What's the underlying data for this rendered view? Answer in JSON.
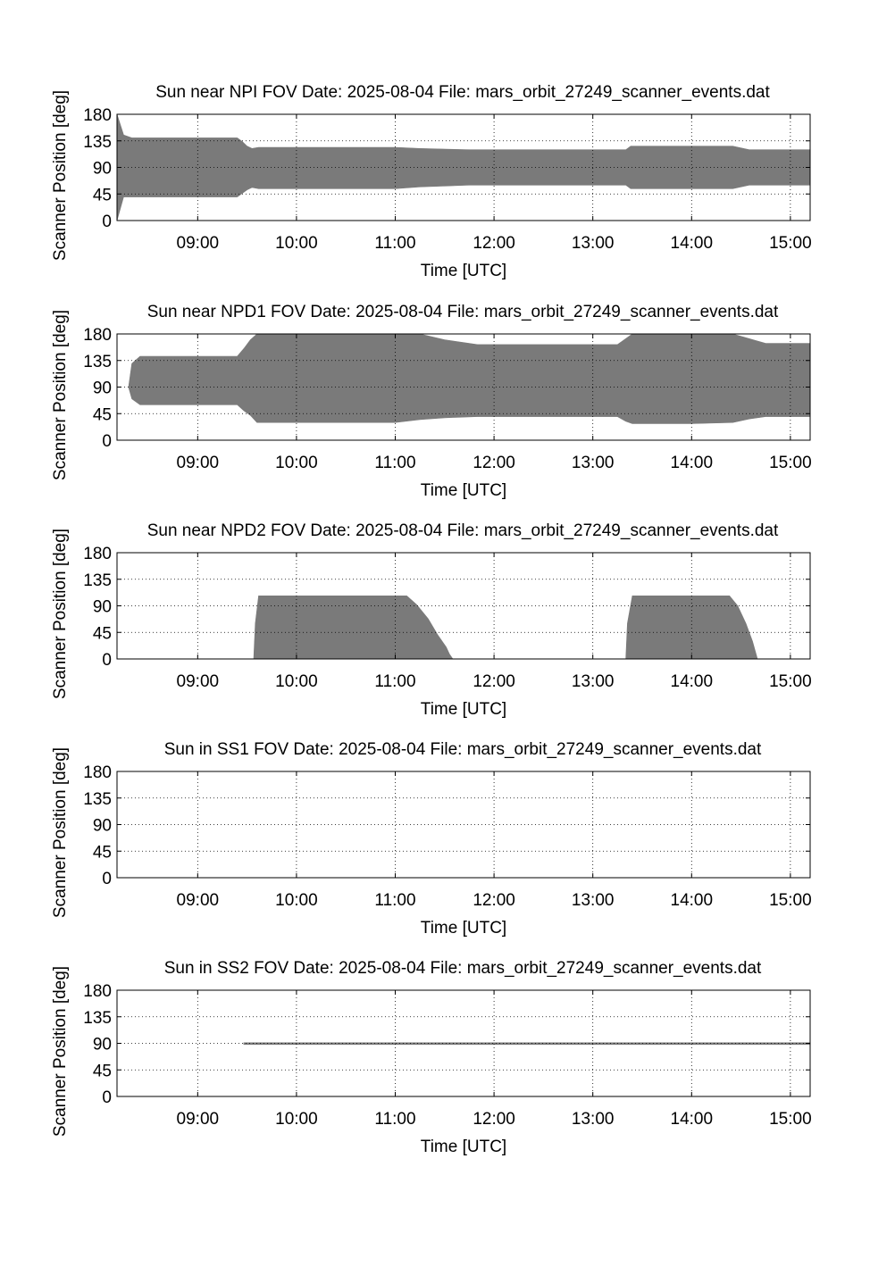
{
  "chart_data": [
    {
      "type": "area",
      "title": "Sun near NPI FOV   Date: 2025-08-04   File: mars_orbit_27249_scanner_events.dat",
      "xlabel": "Time [UTC]",
      "ylabel": "Scanner Position [deg]",
      "x_ticks": [
        "09:00",
        "10:00",
        "11:00",
        "12:00",
        "13:00",
        "14:00",
        "15:00"
      ],
      "y_ticks": [
        "0",
        "45",
        "90",
        "135",
        "180"
      ],
      "xlim": [
        "08:11",
        "15:12"
      ],
      "ylim": [
        0,
        180
      ],
      "grid": true,
      "fill_color": "#7a7a7a",
      "series": [
        {
          "x": [
            "08:11",
            "08:15",
            "08:20",
            "09:00",
            "09:24",
            "09:27",
            "09:30",
            "09:33",
            "09:37",
            "10:00",
            "11:00",
            "11:15",
            "11:45",
            "12:00",
            "13:00",
            "13:20",
            "13:23",
            "14:00",
            "14:25",
            "14:35",
            "15:12"
          ],
          "lower": [
            0,
            40,
            40,
            40,
            40,
            46,
            52,
            56,
            54,
            54,
            54,
            57,
            60,
            60,
            60,
            60,
            54,
            54,
            54,
            60,
            60
          ],
          "upper": [
            180,
            145,
            140,
            140,
            140,
            134,
            126,
            122,
            124,
            124,
            124,
            122,
            120,
            120,
            120,
            120,
            126,
            126,
            126,
            120,
            120
          ]
        }
      ]
    },
    {
      "type": "area",
      "title": "Sun near NPD1 FOV   Date: 2025-08-04   File: mars_orbit_27249_scanner_events.dat",
      "xlabel": "Time [UTC]",
      "ylabel": "Scanner Position [deg]",
      "x_ticks": [
        "09:00",
        "10:00",
        "11:00",
        "12:00",
        "13:00",
        "14:00",
        "15:00"
      ],
      "y_ticks": [
        "0",
        "45",
        "90",
        "135",
        "180"
      ],
      "xlim": [
        "08:11",
        "15:12"
      ],
      "ylim": [
        0,
        180
      ],
      "grid": true,
      "fill_color": "#7a7a7a",
      "series": [
        {
          "x": [
            "08:18",
            "08:20",
            "08:25",
            "09:00",
            "09:24",
            "09:28",
            "09:32",
            "09:36",
            "10:00",
            "11:00",
            "11:15",
            "11:30",
            "11:50",
            "12:00",
            "13:00",
            "13:15",
            "13:20",
            "13:24",
            "14:00",
            "14:25",
            "14:35",
            "14:45",
            "15:12"
          ],
          "lower": [
            90,
            70,
            60,
            60,
            60,
            50,
            42,
            30,
            30,
            30,
            35,
            38,
            40,
            40,
            40,
            40,
            32,
            28,
            28,
            30,
            36,
            40,
            40
          ],
          "upper": [
            90,
            130,
            142,
            142,
            142,
            155,
            170,
            180,
            180,
            180,
            180,
            170,
            162,
            162,
            162,
            162,
            172,
            180,
            180,
            180,
            172,
            164,
            164
          ]
        }
      ]
    },
    {
      "type": "area",
      "title": "Sun near NPD2 FOV   Date: 2025-08-04   File: mars_orbit_27249_scanner_events.dat",
      "xlabel": "Time [UTC]",
      "ylabel": "Scanner Position [deg]",
      "x_ticks": [
        "09:00",
        "10:00",
        "11:00",
        "12:00",
        "13:00",
        "14:00",
        "15:00"
      ],
      "y_ticks": [
        "0",
        "45",
        "90",
        "135",
        "180"
      ],
      "xlim": [
        "08:11",
        "15:12"
      ],
      "ylim": [
        0,
        180
      ],
      "grid": true,
      "fill_color": "#7a7a7a",
      "series": [
        {
          "x": [
            "09:34",
            "09:35",
            "09:37",
            "11:07",
            "11:13",
            "11:20",
            "11:26",
            "11:31",
            "11:33",
            "11:35",
            "13:20",
            "13:21",
            "13:24",
            "14:23",
            "14:28",
            "14:33",
            "14:37",
            "14:40"
          ],
          "lower": [
            0,
            0,
            0,
            0,
            0,
            0,
            0,
            0,
            0,
            0,
            0,
            0,
            0,
            0,
            0,
            0,
            0,
            0
          ],
          "upper": [
            0,
            60,
            107,
            107,
            92,
            68,
            40,
            20,
            8,
            0,
            0,
            60,
            107,
            107,
            90,
            60,
            30,
            0
          ]
        }
      ]
    },
    {
      "type": "area",
      "title": "Sun in SS1 FOV   Date: 2025-08-04   File: mars_orbit_27249_scanner_events.dat",
      "xlabel": "Time [UTC]",
      "ylabel": "Scanner Position [deg]",
      "x_ticks": [
        "09:00",
        "10:00",
        "11:00",
        "12:00",
        "13:00",
        "14:00",
        "15:00"
      ],
      "y_ticks": [
        "0",
        "45",
        "90",
        "135",
        "180"
      ],
      "xlim": [
        "08:11",
        "15:12"
      ],
      "ylim": [
        0,
        180
      ],
      "grid": true,
      "fill_color": "#7a7a7a",
      "series": []
    },
    {
      "type": "area",
      "title": "Sun in SS2 FOV   Date: 2025-08-04   File: mars_orbit_27249_scanner_events.dat",
      "xlabel": "Time [UTC]",
      "ylabel": "Scanner Position [deg]",
      "x_ticks": [
        "09:00",
        "10:00",
        "11:00",
        "12:00",
        "13:00",
        "14:00",
        "15:00"
      ],
      "y_ticks": [
        "0",
        "45",
        "90",
        "135",
        "180"
      ],
      "xlim": [
        "08:11",
        "15:12"
      ],
      "ylim": [
        0,
        180
      ],
      "grid": true,
      "fill_color": "#7a7a7a",
      "series": [
        {
          "x": [
            "09:28",
            "09:38",
            "13:22",
            "13:23",
            "14:25",
            "14:26",
            "15:12"
          ],
          "lower": [
            88,
            88,
            88,
            88,
            88,
            88,
            88
          ],
          "upper": [
            91,
            91,
            91,
            91,
            91,
            91,
            91
          ]
        }
      ]
    }
  ]
}
